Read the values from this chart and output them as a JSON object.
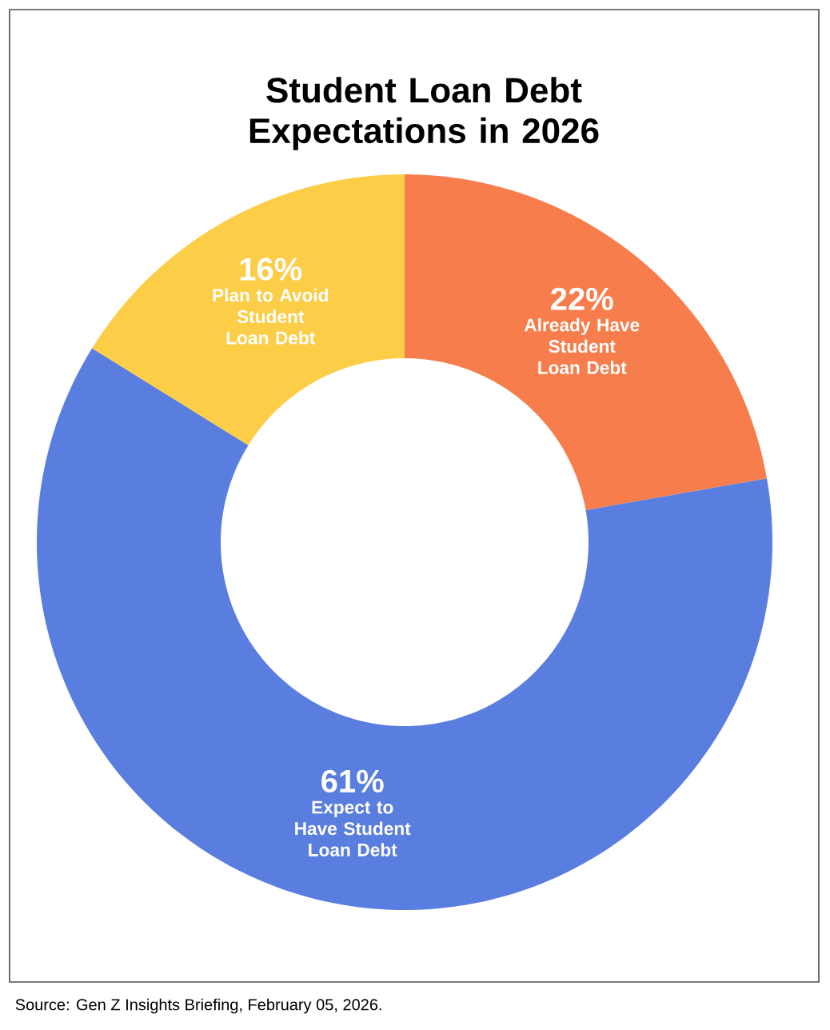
{
  "chart_data": {
    "type": "donut",
    "title": "Student Loan Debt Expectations in 2026",
    "categories": [
      "Already Have Student Loan Debt",
      "Expect to Have Student Loan Debt",
      "Plan to Avoid Student Loan Debt"
    ],
    "values": [
      22,
      61,
      16
    ],
    "value_labels": [
      "22%",
      "61%",
      "16%"
    ],
    "colors": [
      "#f77e4c",
      "#5a7ee0",
      "#fccd46"
    ],
    "annotations": [
      "Source: Gen Z Insights Briefing, February 05, 2026."
    ]
  }
}
